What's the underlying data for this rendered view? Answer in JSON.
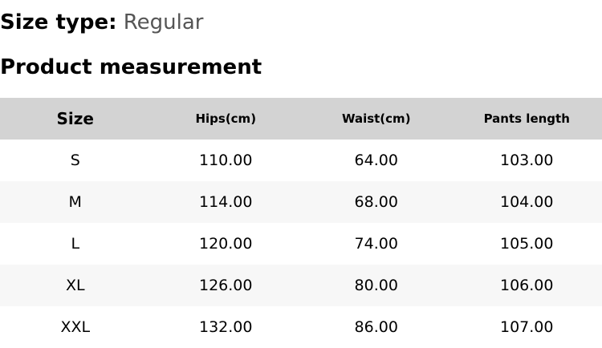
{
  "size_type": {
    "label": "Size type:",
    "value": "Regular"
  },
  "section_title": "Product measurement",
  "table": {
    "headers": [
      "Size",
      "Hips(cm)",
      "Waist(cm)",
      "Pants length"
    ],
    "rows": [
      [
        "S",
        "110.00",
        "64.00",
        "103.00"
      ],
      [
        "M",
        "114.00",
        "68.00",
        "104.00"
      ],
      [
        "L",
        "120.00",
        "74.00",
        "105.00"
      ],
      [
        "XL",
        "126.00",
        "80.00",
        "106.00"
      ],
      [
        "XXL",
        "132.00",
        "86.00",
        "107.00"
      ]
    ]
  }
}
